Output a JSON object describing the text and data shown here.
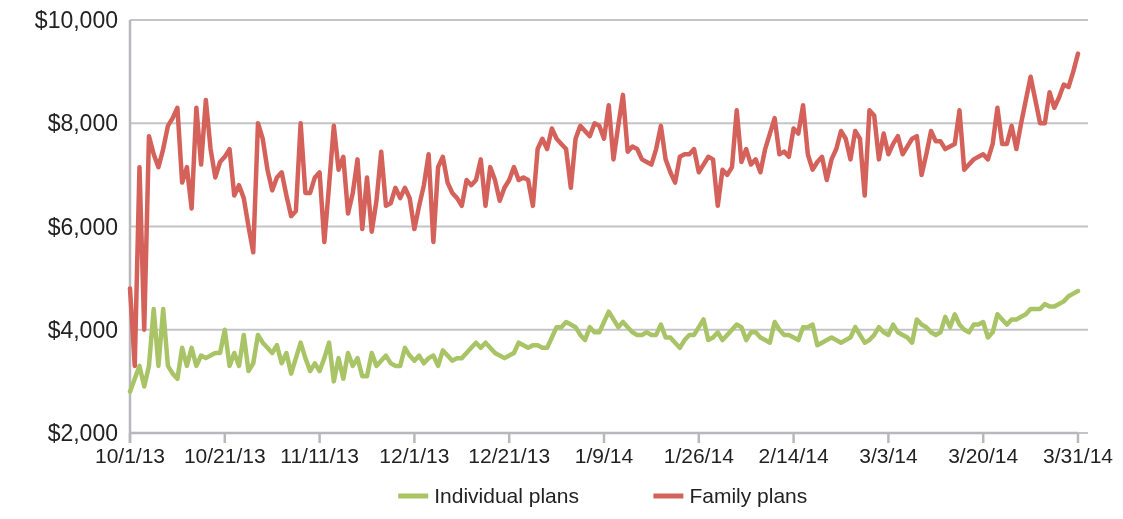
{
  "chart_data": {
    "type": "line",
    "categories": [
      "10/1/13",
      null,
      null,
      null,
      null,
      null,
      null,
      null,
      null,
      null,
      null,
      null,
      null,
      null,
      null,
      null,
      null,
      null,
      null,
      null,
      "10/21/13",
      null,
      null,
      null,
      null,
      null,
      null,
      null,
      null,
      null,
      null,
      null,
      null,
      null,
      null,
      null,
      null,
      null,
      null,
      null,
      "11/11/13",
      null,
      null,
      null,
      null,
      null,
      null,
      null,
      null,
      null,
      null,
      null,
      null,
      null,
      null,
      null,
      null,
      null,
      null,
      null,
      "12/1/13",
      null,
      null,
      null,
      null,
      null,
      null,
      null,
      null,
      null,
      null,
      null,
      null,
      null,
      null,
      null,
      null,
      null,
      null,
      null,
      "12/21/13",
      null,
      null,
      null,
      null,
      null,
      null,
      null,
      null,
      null,
      null,
      null,
      null,
      null,
      null,
      null,
      null,
      null,
      null,
      null,
      "1/9/14",
      null,
      null,
      null,
      null,
      null,
      null,
      null,
      null,
      null,
      null,
      null,
      null,
      null,
      null,
      null,
      null,
      null,
      null,
      null,
      "1/26/14",
      null,
      null,
      null,
      null,
      null,
      null,
      null,
      null,
      null,
      null,
      null,
      null,
      null,
      null,
      null,
      null,
      null,
      null,
      null,
      "2/14/14",
      null,
      null,
      null,
      null,
      null,
      null,
      null,
      null,
      null,
      null,
      null,
      null,
      null,
      null,
      null,
      null,
      null,
      null,
      null,
      "3/3/14",
      null,
      null,
      null,
      null,
      null,
      null,
      null,
      null,
      null,
      null,
      null,
      null,
      null,
      null,
      null,
      null,
      null,
      null,
      null,
      "3/20/14",
      null,
      null,
      null,
      null,
      null,
      null,
      null,
      null,
      null,
      null,
      null,
      null,
      null,
      null,
      null,
      null,
      null,
      null,
      null,
      "3/31/14"
    ],
    "ylim": [
      2000,
      10000
    ],
    "yticks": [
      {
        "value": 2000,
        "label": "$2,000"
      },
      {
        "value": 4000,
        "label": "$4,000"
      },
      {
        "value": 6000,
        "label": "$6,000"
      },
      {
        "value": 8000,
        "label": "$8,000"
      },
      {
        "value": 10000,
        "label": "$10,000"
      }
    ],
    "grid": "y",
    "legend": "bottom",
    "line_style": "solid",
    "series": [
      {
        "name": "Individual plans",
        "color": "#a9c466",
        "values": [
          2800,
          3050,
          3300,
          2900,
          3300,
          4400,
          3300,
          4400,
          3300,
          3150,
          3050,
          3650,
          3300,
          3650,
          3300,
          3500,
          3450,
          3500,
          3550,
          3550,
          4000,
          3300,
          3550,
          3300,
          3900,
          3200,
          3350,
          3900,
          3750,
          3650,
          3550,
          3700,
          3350,
          3550,
          3150,
          3450,
          3750,
          3450,
          3200,
          3350,
          3200,
          3450,
          3750,
          3000,
          3450,
          3050,
          3550,
          3300,
          3450,
          3100,
          3100,
          3550,
          3300,
          3400,
          3500,
          3350,
          3300,
          3300,
          3650,
          3500,
          3400,
          3500,
          3350,
          3450,
          3500,
          3300,
          3600,
          3500,
          3400,
          3450,
          3450,
          3550,
          3650,
          3750,
          3650,
          3750,
          3650,
          3550,
          3500,
          3450,
          3500,
          3550,
          3750,
          3700,
          3650,
          3700,
          3700,
          3650,
          3650,
          3850,
          4050,
          4050,
          4150,
          4100,
          4050,
          3900,
          3800,
          4050,
          3950,
          3950,
          4150,
          4350,
          4200,
          4050,
          4150,
          4050,
          3950,
          3900,
          3900,
          3950,
          3900,
          3900,
          4100,
          3850,
          3850,
          3750,
          3650,
          3800,
          3900,
          3900,
          4050,
          4200,
          3800,
          3850,
          3950,
          3800,
          3900,
          4000,
          4100,
          4050,
          3800,
          3950,
          3950,
          3850,
          3800,
          3750,
          4150,
          4000,
          3900,
          3900,
          3850,
          3800,
          4050,
          4050,
          4100,
          3700,
          3750,
          3800,
          3850,
          3800,
          3750,
          3800,
          3850,
          4050,
          3900,
          3750,
          3800,
          3900,
          4050,
          3950,
          3900,
          4100,
          3950,
          3900,
          3850,
          3750,
          4200,
          4100,
          4050,
          3950,
          3900,
          3950,
          4250,
          4050,
          4300,
          4100,
          4000,
          3950,
          4100,
          4100,
          4150,
          3850,
          3950,
          4300,
          4200,
          4100,
          4200,
          4200,
          4250,
          4300,
          4400,
          4400,
          4400,
          4500,
          4450,
          4450,
          4500,
          4550,
          4650,
          4700,
          4750
        ]
      },
      {
        "name": "Family plans",
        "color": "#d4625b",
        "values": [
          4800,
          3300,
          7150,
          4000,
          7750,
          7400,
          7150,
          7500,
          7950,
          8100,
          8300,
          6850,
          7150,
          6350,
          8300,
          7200,
          8450,
          7500,
          6950,
          7250,
          7350,
          7500,
          6600,
          6800,
          6550,
          6000,
          5500,
          8000,
          7700,
          7100,
          6700,
          6950,
          7050,
          6600,
          6200,
          6300,
          8000,
          6650,
          6650,
          6950,
          7050,
          5700,
          6800,
          7950,
          7100,
          7350,
          6250,
          6650,
          7300,
          5950,
          6950,
          5900,
          6500,
          7450,
          6400,
          6450,
          6750,
          6550,
          6750,
          6550,
          5950,
          6400,
          6800,
          7400,
          5700,
          7150,
          7350,
          6850,
          6650,
          6550,
          6400,
          6900,
          6800,
          6900,
          7300,
          6400,
          7150,
          6900,
          6500,
          6750,
          6900,
          7150,
          6900,
          6950,
          6900,
          6400,
          7500,
          7700,
          7500,
          7900,
          7700,
          7600,
          7500,
          6750,
          7700,
          7950,
          7850,
          7750,
          8000,
          7950,
          7700,
          8350,
          7300,
          7950,
          8550,
          7450,
          7550,
          7500,
          7300,
          7250,
          7200,
          7500,
          7950,
          7300,
          7050,
          6850,
          7350,
          7400,
          7400,
          7500,
          7050,
          7200,
          7350,
          7300,
          6400,
          7100,
          7000,
          7150,
          8250,
          7250,
          7500,
          7200,
          7300,
          7050,
          7500,
          7800,
          8100,
          7400,
          7450,
          7350,
          7900,
          7800,
          8350,
          7400,
          7100,
          7250,
          7350,
          6900,
          7300,
          7500,
          7850,
          7700,
          7300,
          7850,
          7700,
          6600,
          8250,
          8150,
          7300,
          7800,
          7400,
          7600,
          7750,
          7400,
          7550,
          7700,
          7750,
          7000,
          7400,
          7850,
          7650,
          7650,
          7500,
          7550,
          7600,
          8250,
          7100,
          7200,
          7300,
          7350,
          7400,
          7300,
          7600,
          8300,
          7600,
          7600,
          7950,
          7500,
          8000,
          8450,
          8900,
          8450,
          8000,
          8000,
          8600,
          8300,
          8500,
          8750,
          8700,
          9000,
          9350
        ]
      }
    ]
  }
}
